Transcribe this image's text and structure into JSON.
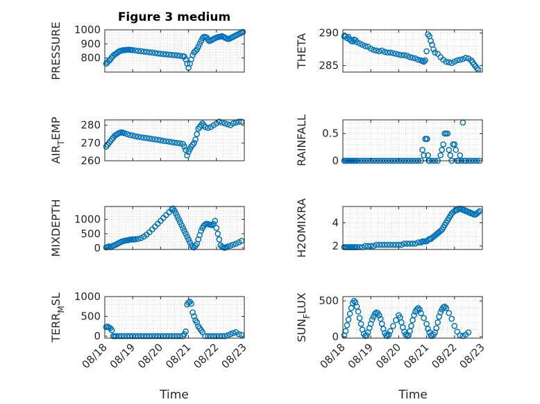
{
  "figure": {
    "title": "Figure 3 medium"
  },
  "chart_data": [
    {
      "type": "scatter",
      "id": "p1",
      "ylabel": "PRESSURE",
      "ylabel_sub": "",
      "ylim": [
        700,
        1000
      ],
      "yticks": [
        800,
        900,
        1000
      ],
      "xlim": [
        0,
        5
      ],
      "marker_color": "#0072BD",
      "xtick_labels": false,
      "x": [
        0.05,
        0.1,
        0.15,
        0.2,
        0.25,
        0.3,
        0.35,
        0.4,
        0.45,
        0.5,
        0.55,
        0.6,
        0.65,
        0.7,
        0.75,
        0.8,
        0.85,
        0.9,
        0.95,
        1.0,
        1.1,
        1.2,
        1.3,
        1.4,
        1.5,
        1.6,
        1.7,
        1.8,
        1.9,
        2.0,
        2.1,
        2.2,
        2.3,
        2.4,
        2.5,
        2.6,
        2.7,
        2.8,
        2.85,
        2.9,
        2.95,
        3.0,
        3.05,
        3.1,
        3.15,
        3.2,
        3.25,
        3.3,
        3.35,
        3.4,
        3.45,
        3.5,
        3.55,
        3.6,
        3.65,
        3.7,
        3.75,
        3.8,
        3.85,
        3.9,
        3.95,
        4.0,
        4.05,
        4.1,
        4.15,
        4.2,
        4.25,
        4.3,
        4.35,
        4.4,
        4.45,
        4.5,
        4.55,
        4.6,
        4.65,
        4.7,
        4.75,
        4.8,
        4.85,
        4.9,
        4.95
      ],
      "y": [
        760,
        770,
        780,
        790,
        805,
        815,
        825,
        830,
        838,
        845,
        850,
        852,
        855,
        856,
        857,
        858,
        858,
        858,
        857,
        856,
        853,
        850,
        848,
        845,
        843,
        840,
        838,
        835,
        832,
        830,
        828,
        826,
        824,
        822,
        820,
        818,
        815,
        812,
        810,
        790,
        760,
        730,
        760,
        790,
        820,
        840,
        850,
        860,
        880,
        900,
        920,
        940,
        950,
        950,
        945,
        930,
        920,
        925,
        930,
        935,
        940,
        945,
        948,
        950,
        952,
        955,
        950,
        945,
        940,
        935,
        935,
        940,
        945,
        950,
        955,
        960,
        965,
        970,
        975,
        980,
        985
      ]
    },
    {
      "type": "scatter",
      "id": "p2",
      "ylabel": "THETA",
      "ylabel_sub": "",
      "ylim": [
        284,
        290.5
      ],
      "yticks": [
        285,
        290
      ],
      "xlim": [
        0,
        5
      ],
      "marker_color": "#0072BD",
      "xtick_labels": false,
      "x": [
        0.05,
        0.1,
        0.15,
        0.2,
        0.25,
        0.3,
        0.35,
        0.4,
        0.45,
        0.5,
        0.6,
        0.7,
        0.8,
        0.9,
        1.0,
        1.1,
        1.2,
        1.3,
        1.4,
        1.5,
        1.6,
        1.7,
        1.8,
        1.9,
        2.0,
        2.1,
        2.2,
        2.3,
        2.4,
        2.5,
        2.6,
        2.7,
        2.8,
        2.85,
        2.9,
        2.95,
        3.0,
        3.05,
        3.1,
        3.15,
        3.2,
        3.25,
        3.3,
        3.4,
        3.5,
        3.6,
        3.7,
        3.8,
        3.9,
        4.0,
        4.1,
        4.2,
        4.3,
        4.4,
        4.5,
        4.6,
        4.65,
        4.7,
        4.75,
        4.8,
        4.85
      ],
      "y": [
        289.5,
        289.5,
        289.2,
        289.4,
        289.0,
        288.8,
        288.7,
        289.0,
        288.9,
        288.6,
        288.4,
        288.2,
        288.0,
        287.9,
        287.6,
        287.4,
        287.3,
        287.2,
        287.3,
        287.1,
        287.0,
        287.0,
        286.9,
        286.8,
        286.7,
        286.6,
        286.6,
        286.5,
        286.3,
        286.2,
        286.1,
        285.9,
        285.8,
        285.7,
        285.6,
        285.8,
        287.2,
        289.8,
        289.5,
        288.8,
        288.2,
        287.5,
        287.0,
        286.8,
        286.3,
        285.9,
        285.6,
        285.5,
        285.4,
        285.6,
        285.8,
        285.9,
        286.0,
        286.2,
        286.1,
        285.8,
        285.5,
        285.2,
        284.9,
        284.6,
        284.4
      ]
    },
    {
      "type": "scatter",
      "id": "p3",
      "ylabel": "AIR",
      "ylabel_sub": "T",
      "ylabel_rest": "EMP",
      "ylim": [
        260,
        283
      ],
      "yticks": [
        260,
        270,
        280
      ],
      "xlim": [
        0,
        5
      ],
      "marker_color": "#0072BD",
      "xtick_labels": false,
      "x": [
        0.05,
        0.1,
        0.15,
        0.2,
        0.25,
        0.3,
        0.35,
        0.4,
        0.45,
        0.5,
        0.55,
        0.6,
        0.65,
        0.7,
        0.8,
        0.9,
        1.0,
        1.1,
        1.2,
        1.3,
        1.4,
        1.5,
        1.6,
        1.7,
        1.8,
        1.9,
        2.0,
        2.1,
        2.2,
        2.3,
        2.4,
        2.5,
        2.6,
        2.7,
        2.8,
        2.85,
        2.9,
        2.95,
        3.0,
        3.05,
        3.1,
        3.15,
        3.2,
        3.25,
        3.3,
        3.35,
        3.4,
        3.45,
        3.5,
        3.55,
        3.6,
        3.7,
        3.8,
        3.9,
        4.0,
        4.1,
        4.2,
        4.3,
        4.4,
        4.5,
        4.6,
        4.7,
        4.8,
        4.9
      ],
      "y": [
        268,
        269,
        270,
        271,
        272,
        273,
        274,
        274.5,
        275,
        275.5,
        275.8,
        276,
        275.8,
        275.5,
        275,
        274.5,
        274.2,
        273.8,
        273.5,
        273.2,
        273,
        272.8,
        272.5,
        272.2,
        272,
        271.8,
        271.5,
        271.2,
        271,
        270.8,
        270.5,
        270.2,
        270,
        269.8,
        269.5,
        268,
        266,
        263,
        265,
        266.5,
        268,
        269,
        270,
        272,
        275,
        278,
        279,
        280,
        281,
        280,
        279,
        278.5,
        279,
        280,
        281,
        282,
        281.5,
        281,
        280.5,
        280,
        281,
        281.5,
        282,
        282
      ]
    },
    {
      "type": "scatter",
      "id": "p4",
      "ylabel": "RAINFALL",
      "ylabel_sub": "",
      "ylim": [
        0,
        0.75
      ],
      "yticks": [
        0,
        0.5
      ],
      "xlim": [
        0,
        5
      ],
      "marker_color": "#0072BD",
      "xtick_labels": false,
      "x": [
        0.05,
        0.1,
        0.15,
        0.2,
        0.25,
        0.3,
        0.35,
        0.4,
        0.45,
        0.5,
        0.6,
        0.7,
        0.8,
        0.9,
        1.0,
        1.1,
        1.2,
        1.3,
        1.4,
        1.5,
        1.6,
        1.7,
        1.8,
        1.9,
        2.0,
        2.1,
        2.2,
        2.3,
        2.4,
        2.5,
        2.6,
        2.7,
        2.8,
        2.85,
        2.9,
        2.95,
        3.0,
        3.02,
        3.05,
        3.08,
        3.1,
        3.2,
        3.3,
        3.4,
        3.5,
        3.55,
        3.6,
        3.65,
        3.7,
        3.75,
        3.8,
        3.85,
        3.9,
        3.95,
        4.0,
        4.05,
        4.1,
        4.15,
        4.2,
        4.25,
        4.3,
        4.35,
        4.4,
        4.5,
        4.6,
        4.7,
        4.8,
        4.9
      ],
      "y": [
        0,
        0,
        0,
        0,
        0,
        0,
        0,
        0,
        0,
        0,
        0,
        0,
        0,
        0,
        0,
        0,
        0,
        0,
        0,
        0,
        0,
        0,
        0,
        0,
        0,
        0,
        0,
        0,
        0,
        0,
        0,
        0,
        0,
        0.2,
        0.1,
        0.4,
        0.4,
        0.4,
        0.1,
        0,
        0,
        0,
        0,
        0,
        0.1,
        0.2,
        0.3,
        0.5,
        0.5,
        0.5,
        0.2,
        0.1,
        0,
        0.3,
        0.3,
        0.2,
        0,
        0,
        0.1,
        0,
        0.7,
        0,
        0,
        0,
        0,
        0,
        0,
        0
      ]
    },
    {
      "type": "scatter",
      "id": "p5",
      "ylabel": "MIXDEPTH",
      "ylabel_sub": "",
      "ylim": [
        -50,
        1450
      ],
      "yticks": [
        0,
        500,
        1000
      ],
      "xlim": [
        0,
        5
      ],
      "marker_color": "#0072BD",
      "xtick_labels": false,
      "x": [
        0.05,
        0.1,
        0.15,
        0.2,
        0.25,
        0.3,
        0.35,
        0.4,
        0.45,
        0.5,
        0.55,
        0.6,
        0.65,
        0.7,
        0.75,
        0.8,
        0.85,
        0.9,
        0.95,
        1.0,
        1.05,
        1.1,
        1.2,
        1.3,
        1.4,
        1.5,
        1.6,
        1.7,
        1.8,
        1.9,
        2.0,
        2.1,
        2.2,
        2.3,
        2.4,
        2.45,
        2.5,
        2.55,
        2.6,
        2.65,
        2.7,
        2.75,
        2.8,
        2.85,
        2.9,
        2.95,
        3.0,
        3.05,
        3.1,
        3.15,
        3.2,
        3.25,
        3.3,
        3.35,
        3.4,
        3.45,
        3.5,
        3.55,
        3.6,
        3.65,
        3.7,
        3.75,
        3.8,
        3.85,
        3.9,
        3.95,
        4.0,
        4.05,
        4.1,
        4.15,
        4.2,
        4.25,
        4.3,
        4.35,
        4.4,
        4.5,
        4.6,
        4.7,
        4.8,
        4.9
      ],
      "y": [
        20,
        40,
        60,
        30,
        50,
        80,
        100,
        120,
        150,
        170,
        200,
        220,
        240,
        250,
        260,
        270,
        280,
        290,
        300,
        300,
        300,
        310,
        320,
        350,
        400,
        470,
        550,
        650,
        750,
        850,
        950,
        1050,
        1150,
        1250,
        1350,
        1380,
        1300,
        1200,
        1100,
        1000,
        900,
        800,
        700,
        600,
        500,
        400,
        300,
        200,
        100,
        50,
        20,
        80,
        150,
        300,
        450,
        600,
        700,
        780,
        820,
        850,
        840,
        820,
        810,
        800,
        840,
        950,
        700,
        500,
        300,
        100,
        50,
        20,
        10,
        30,
        50,
        80,
        120,
        150,
        200,
        250
      ]
    },
    {
      "type": "scatter",
      "id": "p6",
      "ylabel": "H2OMIXRA",
      "ylabel_sub": "",
      "ylim": [
        1.7,
        5.4
      ],
      "yticks": [
        2,
        4
      ],
      "xlim": [
        0,
        5
      ],
      "marker_color": "#0072BD",
      "xtick_labels": false,
      "x": [
        0.05,
        0.1,
        0.15,
        0.2,
        0.25,
        0.3,
        0.35,
        0.4,
        0.45,
        0.5,
        0.6,
        0.7,
        0.8,
        0.9,
        1.0,
        1.1,
        1.2,
        1.3,
        1.4,
        1.5,
        1.6,
        1.7,
        1.8,
        1.9,
        2.0,
        2.1,
        2.2,
        2.3,
        2.4,
        2.5,
        2.6,
        2.7,
        2.8,
        2.85,
        2.9,
        2.95,
        3.0,
        3.05,
        3.1,
        3.15,
        3.2,
        3.25,
        3.3,
        3.35,
        3.4,
        3.45,
        3.5,
        3.55,
        3.6,
        3.65,
        3.7,
        3.75,
        3.8,
        3.85,
        3.9,
        3.95,
        4.0,
        4.05,
        4.1,
        4.15,
        4.2,
        4.25,
        4.3,
        4.35,
        4.4,
        4.45,
        4.5,
        4.55,
        4.6,
        4.65,
        4.7,
        4.75,
        4.8,
        4.85,
        4.9
      ],
      "y": [
        1.9,
        1.9,
        1.9,
        1.9,
        1.9,
        1.9,
        1.9,
        1.9,
        1.9,
        1.9,
        1.9,
        1.9,
        2.0,
        2.0,
        2.0,
        2.0,
        2.1,
        2.1,
        2.1,
        2.1,
        2.1,
        2.1,
        2.1,
        2.1,
        2.1,
        2.1,
        2.2,
        2.2,
        2.2,
        2.2,
        2.2,
        2.3,
        2.3,
        2.4,
        2.4,
        2.4,
        2.4,
        2.5,
        2.6,
        2.6,
        2.7,
        2.8,
        2.9,
        3.0,
        3.1,
        3.2,
        3.3,
        3.4,
        3.6,
        3.8,
        4.0,
        4.2,
        4.4,
        4.6,
        4.8,
        4.9,
        5.0,
        5.1,
        5.1,
        5.2,
        5.2,
        5.2,
        5.1,
        5.1,
        5.0,
        5.0,
        4.9,
        4.9,
        4.8,
        4.8,
        4.7,
        4.7,
        4.8,
        4.9,
        5.0
      ]
    },
    {
      "type": "scatter",
      "id": "p7",
      "ylabel": "TERR",
      "ylabel_sub": "M",
      "ylabel_rest": "SL",
      "ylim": [
        -50,
        1000
      ],
      "yticks": [
        0,
        500,
        1000
      ],
      "xlim": [
        0,
        5
      ],
      "marker_color": "#0072BD",
      "xtick_labels": true,
      "x": [
        0.05,
        0.1,
        0.15,
        0.2,
        0.25,
        0.3,
        0.35,
        0.4,
        0.5,
        0.6,
        0.7,
        0.8,
        0.9,
        1.0,
        1.1,
        1.2,
        1.3,
        1.4,
        1.5,
        1.6,
        1.7,
        1.8,
        1.9,
        2.0,
        2.1,
        2.2,
        2.3,
        2.4,
        2.5,
        2.6,
        2.7,
        2.8,
        2.85,
        2.9,
        2.95,
        3.0,
        3.05,
        3.1,
        3.15,
        3.2,
        3.25,
        3.3,
        3.35,
        3.4,
        3.45,
        3.5,
        3.6,
        3.7,
        3.8,
        3.9,
        4.0,
        4.1,
        4.2,
        4.3,
        4.4,
        4.5,
        4.6,
        4.7,
        4.8,
        4.9
      ],
      "y": [
        230,
        240,
        220,
        200,
        150,
        0,
        0,
        0,
        0,
        0,
        0,
        0,
        0,
        0,
        0,
        0,
        0,
        0,
        0,
        0,
        0,
        0,
        0,
        0,
        0,
        0,
        0,
        0,
        0,
        0,
        0,
        0,
        50,
        120,
        800,
        850,
        870,
        820,
        600,
        500,
        400,
        350,
        250,
        200,
        150,
        100,
        0,
        0,
        0,
        0,
        0,
        0,
        0,
        0,
        20,
        50,
        80,
        100,
        50,
        30
      ]
    },
    {
      "type": "scatter",
      "id": "p8",
      "ylabel": "SUN",
      "ylabel_sub": "F",
      "ylabel_rest": "LUX",
      "ylim": [
        -20,
        560
      ],
      "yticks": [
        0,
        500
      ],
      "xlim": [
        0,
        5
      ],
      "marker_color": "#0072BD",
      "xtick_labels": true,
      "x": [
        0.05,
        0.1,
        0.15,
        0.2,
        0.25,
        0.3,
        0.35,
        0.4,
        0.45,
        0.5,
        0.55,
        0.6,
        0.65,
        0.7,
        0.75,
        0.8,
        0.85,
        0.9,
        0.95,
        1.0,
        1.05,
        1.1,
        1.15,
        1.2,
        1.25,
        1.3,
        1.35,
        1.4,
        1.45,
        1.5,
        1.55,
        1.6,
        1.65,
        1.7,
        1.8,
        1.9,
        2.0,
        2.05,
        2.1,
        2.15,
        2.2,
        2.25,
        2.3,
        2.35,
        2.4,
        2.45,
        2.5,
        2.55,
        2.6,
        2.65,
        2.7,
        2.75,
        2.8,
        2.9,
        3.0,
        3.05,
        3.1,
        3.15,
        3.2,
        3.25,
        3.3,
        3.35,
        3.4,
        3.45,
        3.5,
        3.55,
        3.6,
        3.65,
        3.7,
        3.8,
        3.9,
        4.0,
        4.1,
        4.2,
        4.3,
        4.4,
        4.5
      ],
      "y": [
        20,
        80,
        160,
        240,
        320,
        400,
        470,
        500,
        480,
        420,
        350,
        260,
        180,
        100,
        40,
        10,
        20,
        60,
        120,
        180,
        240,
        280,
        320,
        340,
        330,
        300,
        250,
        180,
        110,
        50,
        20,
        10,
        30,
        80,
        150,
        230,
        300,
        270,
        200,
        130,
        70,
        30,
        10,
        20,
        80,
        150,
        230,
        300,
        350,
        380,
        400,
        380,
        330,
        260,
        180,
        110,
        60,
        20,
        10,
        30,
        60,
        120,
        200,
        280,
        340,
        380,
        410,
        420,
        400,
        330,
        250,
        150,
        70,
        20,
        10,
        30,
        60
      ]
    }
  ],
  "xaxis": {
    "label": "Time",
    "tick_labels": [
      "08/18",
      "08/19",
      "08/20",
      "08/21",
      "08/22",
      "08/23"
    ]
  }
}
